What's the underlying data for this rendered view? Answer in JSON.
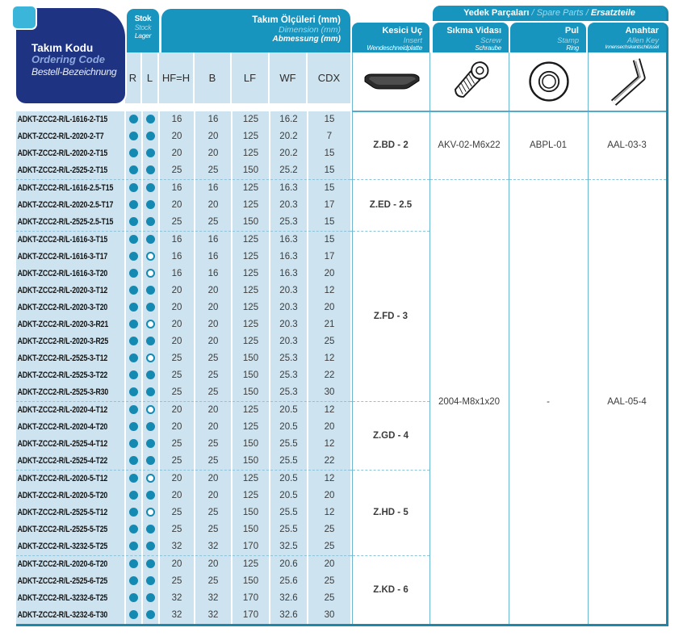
{
  "header": {
    "tool_code": {
      "tr": "Takım Kodu",
      "en": "Ordering Code",
      "de": "Bestell-Bezeichnung"
    },
    "stock": {
      "tr": "Stok",
      "en": "Stock",
      "de": "Lager"
    },
    "dimensions": {
      "tr": "Takım Ölçüleri (mm)",
      "en": "Dimension (mm)",
      "de": "Abmessung (mm)"
    },
    "insert": {
      "tr": "Kesici Uç",
      "en": "Insert",
      "de": "Wendeschneidplatte"
    },
    "spare_parts": {
      "tr": "Yedek Parçaları",
      "en": "Spare Parts",
      "de": "Ersatzteile",
      "sep": "/"
    },
    "screw": {
      "tr": "Sıkma Vidası",
      "en": "Screw",
      "de": "Schraube"
    },
    "stamp": {
      "tr": "Pul",
      "en": "Stamp",
      "de": "Ring"
    },
    "allen_key": {
      "tr": "Anahtar",
      "en": "Allen Key",
      "de": "Innensechskantschlüssel"
    },
    "icons": {
      "insert": "grooving-insert-image",
      "screw": "torx-screw-image",
      "stamp": "washer-ring-image",
      "allen_key": "hex-l-key-image"
    }
  },
  "table": {
    "columns": [
      "R",
      "L",
      "HF=H",
      "B",
      "LF",
      "WF",
      "CDX"
    ],
    "legend": {
      "filled_dot": "in stock",
      "open_dot": "not stocked"
    },
    "rows": [
      {
        "code": "ADKT-ZCC2-R/L-1616-2-T15",
        "r": true,
        "l": true,
        "hf": "16",
        "b": "16",
        "lf": "125",
        "wf": "16.2",
        "cdx": "15"
      },
      {
        "code": "ADKT-ZCC2-R/L-2020-2-T7",
        "r": true,
        "l": true,
        "hf": "20",
        "b": "20",
        "lf": "125",
        "wf": "20.2",
        "cdx": "7"
      },
      {
        "code": "ADKT-ZCC2-R/L-2020-2-T15",
        "r": true,
        "l": true,
        "hf": "20",
        "b": "20",
        "lf": "125",
        "wf": "20.2",
        "cdx": "15"
      },
      {
        "code": "ADKT-ZCC2-R/L-2525-2-T15",
        "r": true,
        "l": true,
        "hf": "25",
        "b": "25",
        "lf": "150",
        "wf": "25.2",
        "cdx": "15"
      },
      {
        "code": "ADKT-ZCC2-R/L-1616-2.5-T15",
        "r": true,
        "l": true,
        "hf": "16",
        "b": "16",
        "lf": "125",
        "wf": "16.3",
        "cdx": "15"
      },
      {
        "code": "ADKT-ZCC2-R/L-2020-2.5-T17",
        "r": true,
        "l": true,
        "hf": "20",
        "b": "20",
        "lf": "125",
        "wf": "20.3",
        "cdx": "17"
      },
      {
        "code": "ADKT-ZCC2-R/L-2525-2.5-T15",
        "r": true,
        "l": true,
        "hf": "25",
        "b": "25",
        "lf": "150",
        "wf": "25.3",
        "cdx": "15"
      },
      {
        "code": "ADKT-ZCC2-R/L-1616-3-T15",
        "r": true,
        "l": true,
        "hf": "16",
        "b": "16",
        "lf": "125",
        "wf": "16.3",
        "cdx": "15"
      },
      {
        "code": "ADKT-ZCC2-R/L-1616-3-T17",
        "r": true,
        "l": false,
        "hf": "16",
        "b": "16",
        "lf": "125",
        "wf": "16.3",
        "cdx": "17"
      },
      {
        "code": "ADKT-ZCC2-R/L-1616-3-T20",
        "r": true,
        "l": false,
        "hf": "16",
        "b": "16",
        "lf": "125",
        "wf": "16.3",
        "cdx": "20"
      },
      {
        "code": "ADKT-ZCC2-R/L-2020-3-T12",
        "r": true,
        "l": true,
        "hf": "20",
        "b": "20",
        "lf": "125",
        "wf": "20.3",
        "cdx": "12"
      },
      {
        "code": "ADKT-ZCC2-R/L-2020-3-T20",
        "r": true,
        "l": true,
        "hf": "20",
        "b": "20",
        "lf": "125",
        "wf": "20.3",
        "cdx": "20"
      },
      {
        "code": "ADKT-ZCC2-R/L-2020-3-R21",
        "r": true,
        "l": false,
        "hf": "20",
        "b": "20",
        "lf": "125",
        "wf": "20.3",
        "cdx": "21"
      },
      {
        "code": "ADKT-ZCC2-R/L-2020-3-R25",
        "r": true,
        "l": true,
        "hf": "20",
        "b": "20",
        "lf": "125",
        "wf": "20.3",
        "cdx": "25"
      },
      {
        "code": "ADKT-ZCC2-R/L-2525-3-T12",
        "r": true,
        "l": false,
        "hf": "25",
        "b": "25",
        "lf": "150",
        "wf": "25.3",
        "cdx": "12"
      },
      {
        "code": "ADKT-ZCC2-R/L-2525-3-T22",
        "r": true,
        "l": true,
        "hf": "25",
        "b": "25",
        "lf": "150",
        "wf": "25.3",
        "cdx": "22"
      },
      {
        "code": "ADKT-ZCC2-R/L-2525-3-R30",
        "r": true,
        "l": true,
        "hf": "25",
        "b": "25",
        "lf": "150",
        "wf": "25.3",
        "cdx": "30"
      },
      {
        "code": "ADKT-ZCC2-R/L-2020-4-T12",
        "r": true,
        "l": false,
        "hf": "20",
        "b": "20",
        "lf": "125",
        "wf": "20.5",
        "cdx": "12"
      },
      {
        "code": "ADKT-ZCC2-R/L-2020-4-T20",
        "r": true,
        "l": true,
        "hf": "20",
        "b": "20",
        "lf": "125",
        "wf": "20.5",
        "cdx": "20"
      },
      {
        "code": "ADKT-ZCC2-R/L-2525-4-T12",
        "r": true,
        "l": true,
        "hf": "25",
        "b": "25",
        "lf": "150",
        "wf": "25.5",
        "cdx": "12"
      },
      {
        "code": "ADKT-ZCC2-R/L-2525-4-T22",
        "r": true,
        "l": true,
        "hf": "25",
        "b": "25",
        "lf": "150",
        "wf": "25.5",
        "cdx": "22"
      },
      {
        "code": "ADKT-ZCC2-R/L-2020-5-T12",
        "r": true,
        "l": false,
        "hf": "20",
        "b": "20",
        "lf": "125",
        "wf": "20.5",
        "cdx": "12"
      },
      {
        "code": "ADKT-ZCC2-R/L-2020-5-T20",
        "r": true,
        "l": true,
        "hf": "20",
        "b": "20",
        "lf": "125",
        "wf": "20.5",
        "cdx": "20"
      },
      {
        "code": "ADKT-ZCC2-R/L-2525-5-T12",
        "r": true,
        "l": false,
        "hf": "25",
        "b": "25",
        "lf": "150",
        "wf": "25.5",
        "cdx": "12"
      },
      {
        "code": "ADKT-ZCC2-R/L-2525-5-T25",
        "r": true,
        "l": true,
        "hf": "25",
        "b": "25",
        "lf": "150",
        "wf": "25.5",
        "cdx": "25"
      },
      {
        "code": "ADKT-ZCC2-R/L-3232-5-T25",
        "r": true,
        "l": true,
        "hf": "32",
        "b": "32",
        "lf": "170",
        "wf": "32.5",
        "cdx": "25"
      },
      {
        "code": "ADKT-ZCC2-R/L-2020-6-T20",
        "r": true,
        "l": true,
        "hf": "20",
        "b": "20",
        "lf": "125",
        "wf": "20.6",
        "cdx": "20"
      },
      {
        "code": "ADKT-ZCC2-R/L-2525-6-T25",
        "r": true,
        "l": true,
        "hf": "25",
        "b": "25",
        "lf": "150",
        "wf": "25.6",
        "cdx": "25"
      },
      {
        "code": "ADKT-ZCC2-R/L-3232-6-T25",
        "r": true,
        "l": true,
        "hf": "32",
        "b": "32",
        "lf": "170",
        "wf": "32.6",
        "cdx": "25"
      },
      {
        "code": "ADKT-ZCC2-R/L-3232-6-T30",
        "r": true,
        "l": true,
        "hf": "32",
        "b": "32",
        "lf": "170",
        "wf": "32.6",
        "cdx": "30"
      }
    ],
    "groups": [
      {
        "label": "Z.BD - 2",
        "rows": 4
      },
      {
        "label": "Z.ED - 2.5",
        "rows": 3
      },
      {
        "label": "Z.FD - 3",
        "rows": 10
      },
      {
        "label": "Z.GD - 4",
        "rows": 4
      },
      {
        "label": "Z.HD - 5",
        "rows": 5
      },
      {
        "label": "Z.KD - 6",
        "rows": 4
      }
    ],
    "spares": [
      {
        "rows": 4,
        "screw": "AKV-02-M6x22",
        "stamp": "ABPL-01",
        "allen_key": "AAL-03-3"
      },
      {
        "rows": 26,
        "screw": "2004-M8x1x20",
        "stamp": "-",
        "allen_key": "AAL-05-4"
      }
    ]
  },
  "colors": {
    "navy": "#1e3381",
    "teal_header": "#1795bf",
    "light_row": "#cde3ef",
    "dot": "#1489b2",
    "border_dark_teal": "#1f87a9",
    "border_light_teal": "#6cb6d2",
    "cyan_square": "#3cb5da"
  }
}
